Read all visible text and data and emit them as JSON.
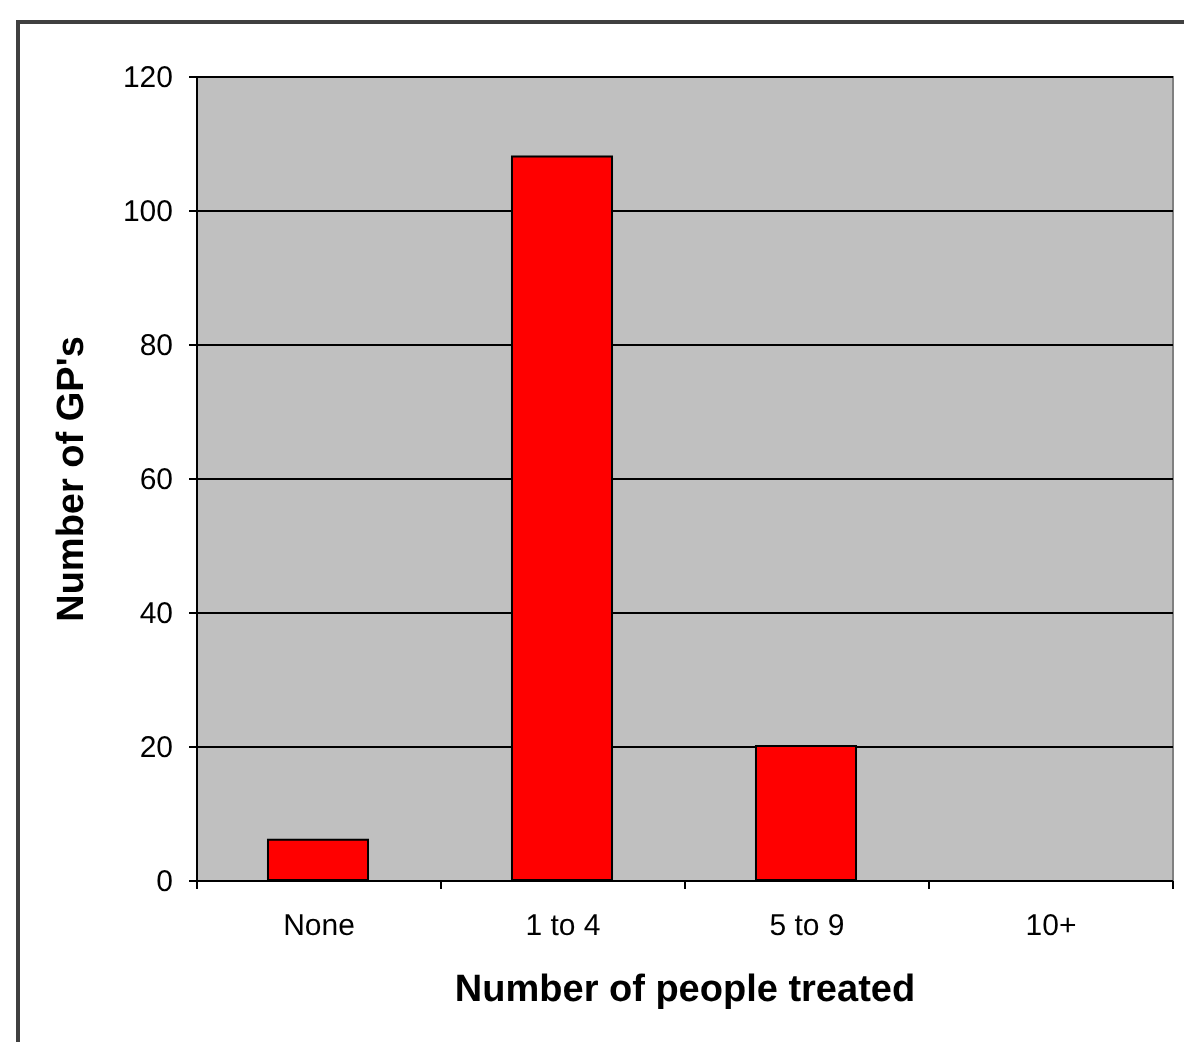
{
  "chart_data": {
    "type": "bar",
    "xlabel": "Number of people treated",
    "ylabel": "Number of GP's",
    "categories": [
      "None",
      "1 to 4",
      "5 to 9",
      "10+"
    ],
    "values": [
      6,
      108,
      20,
      null
    ],
    "color": "#ff0000",
    "ylim": [
      0,
      120
    ],
    "yticks": [
      0,
      20,
      40,
      60,
      80,
      100,
      120
    ],
    "grid": "y"
  }
}
